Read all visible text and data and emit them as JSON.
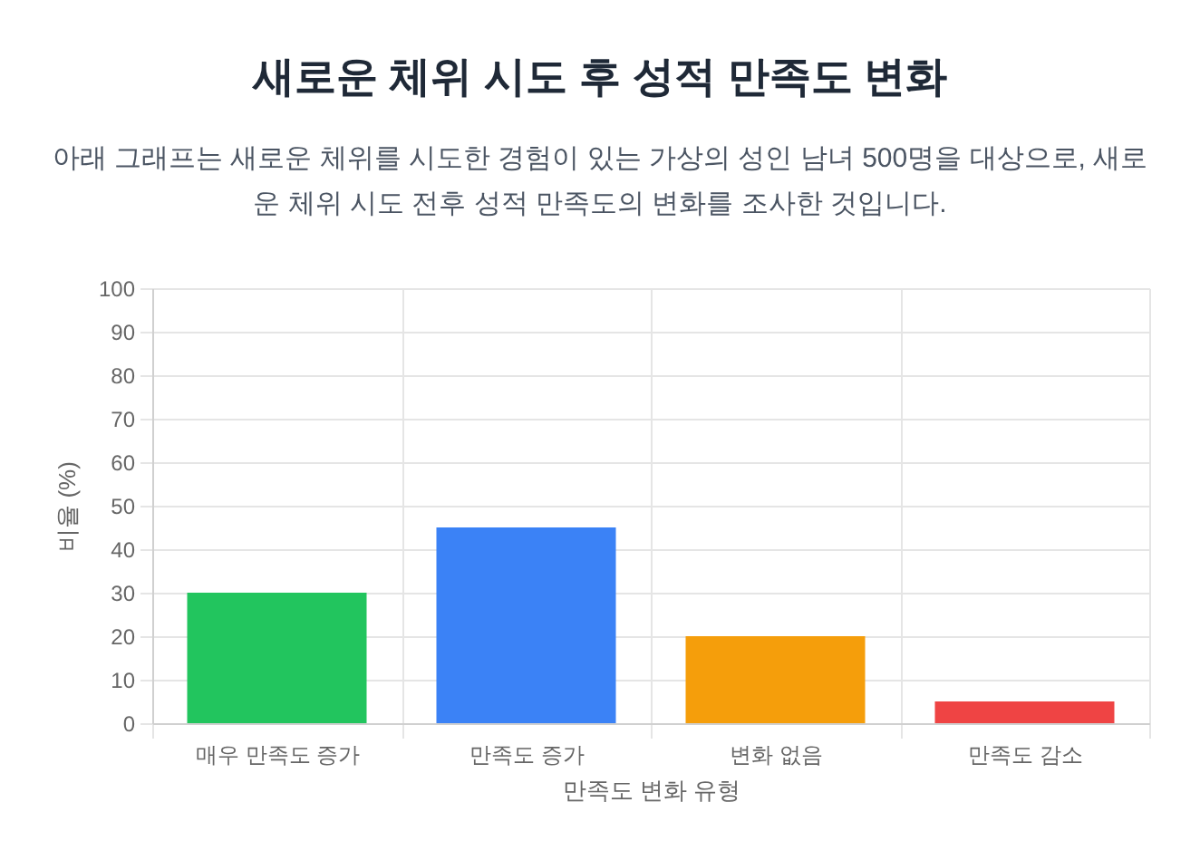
{
  "chart_data": {
    "type": "bar",
    "title": "새로운 체위 시도 후 성적 만족도 변화",
    "subtitle": "아래 그래프는 새로운 체위를 시도한 경험이 있는 가상의 성인 남녀 500명을 대상으로, 새로운 체위 시도 전후 성적 만족도의 변화를 조사한 것입니다.",
    "xlabel": "만족도 변화 유형",
    "ylabel": "비율 (%)",
    "categories": [
      "매우 만족도 증가",
      "만족도 증가",
      "변화 없음",
      "만족도 감소"
    ],
    "values": [
      30,
      45,
      20,
      5
    ],
    "colors": [
      "#22c55e",
      "#3b82f6",
      "#f59e0b",
      "#ef4444"
    ],
    "ylim": [
      0,
      100
    ],
    "yticks": [
      0,
      10,
      20,
      30,
      40,
      50,
      60,
      70,
      80,
      90,
      100
    ],
    "grid": true
  }
}
